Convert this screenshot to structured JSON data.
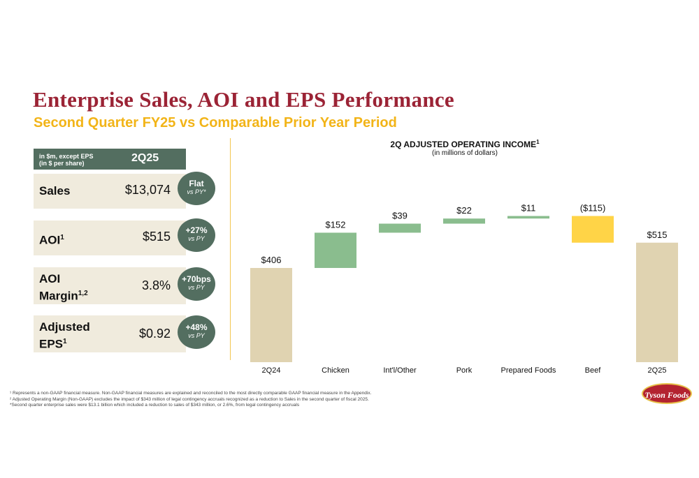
{
  "title": "Enterprise Sales, AOI and EPS Performance",
  "subtitle": "Second Quarter FY25 vs Comparable Prior Year Period",
  "table": {
    "note_line1": "in $m, except EPS",
    "note_line2": "(in $ per share)",
    "column": "2Q25",
    "rows": [
      {
        "label": "Sales",
        "label_sup": "",
        "value": "$13,074",
        "badge_main": "Flat",
        "badge_sub": "vs PY*"
      },
      {
        "label": "AOI",
        "label_sup": "1",
        "value": "$515",
        "badge_main": "+27%",
        "badge_sub": "vs PY"
      },
      {
        "label_line1": "AOI",
        "label_line2": "Margin",
        "label_sup": "1,2",
        "value": "3.8%",
        "badge_main": "+70bps",
        "badge_sub": "vs PY"
      },
      {
        "label_line1": "Adjusted",
        "label_line2": "EPS",
        "label_sup": "1",
        "value": "$0.92",
        "badge_main": "+48%",
        "badge_sub": "vs PY"
      }
    ]
  },
  "chart_title": "2Q ADJUSTED OPERATING INCOME",
  "chart_title_sup": "1",
  "chart_subtitle": "(in millions of dollars)",
  "chart_data": {
    "type": "waterfall",
    "categories": [
      "2Q24",
      "Chicken",
      "Int'l/Other",
      "Pork",
      "Prepared Foods",
      "Beef",
      "2Q25"
    ],
    "values": [
      406,
      152,
      39,
      22,
      11,
      -115,
      515
    ],
    "kinds": [
      "total",
      "delta",
      "delta",
      "delta",
      "delta",
      "delta",
      "total"
    ],
    "labels": [
      "$406",
      "$152",
      "$39",
      "$22",
      "$11",
      "($115)",
      "$515"
    ],
    "colors": {
      "total": "#e0d3b1",
      "increase": "#8abd8e",
      "decrease": "#ffd447"
    }
  },
  "footnotes": [
    "¹ Represents a non-GAAP financial measure. Non-GAAP financial measures are explained and reconciled to the most directly comparable GAAP financial measure in the Appendix.",
    "² Adjusted Operating Margin (Non-GAAP) excludes the impact of $343 million of legal contingency accruals recognized as a reduction to Sales in the second quarter of fiscal 2025.",
    "*Second quarter enterprise sales were $13.1 billion which included a reduction to sales of $343 million, or 2.6%, from legal contingency accruals"
  ],
  "logo_text": "Tyson Foods"
}
